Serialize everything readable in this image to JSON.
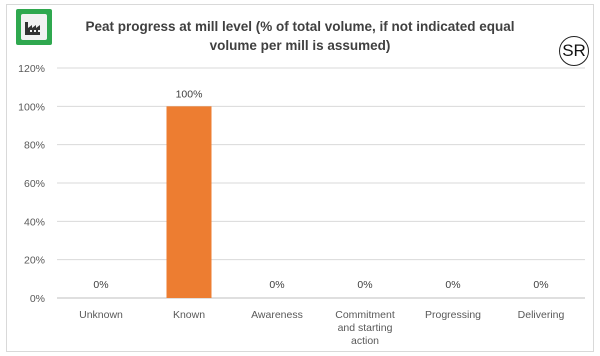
{
  "header": {
    "icon": "factory-icon",
    "badge_color": "#2fa84f",
    "corner_badge": "SR"
  },
  "chart_data": {
    "type": "bar",
    "title": "Peat progress at mill level (% of total volume, if not indicated equal volume per mill is assumed)",
    "categories": [
      "Unknown",
      "Known",
      "Awareness",
      "Commitment and starting action",
      "Progressing",
      "Delivering"
    ],
    "category_lines": [
      [
        "Unknown"
      ],
      [
        "Known"
      ],
      [
        "Awareness"
      ],
      [
        "Commitment",
        "and starting",
        "action"
      ],
      [
        "Progressing"
      ],
      [
        "Delivering"
      ]
    ],
    "values": [
      0,
      100,
      0,
      0,
      0,
      0
    ],
    "data_labels": [
      "0%",
      "100%",
      "0%",
      "0%",
      "0%",
      "0%"
    ],
    "yticks": [
      "0%",
      "20%",
      "40%",
      "60%",
      "80%",
      "100%",
      "120%"
    ],
    "ylim": [
      0,
      120
    ],
    "bar_color": "#ed7d31",
    "gridlines": true,
    "xlabel": "",
    "ylabel": ""
  }
}
